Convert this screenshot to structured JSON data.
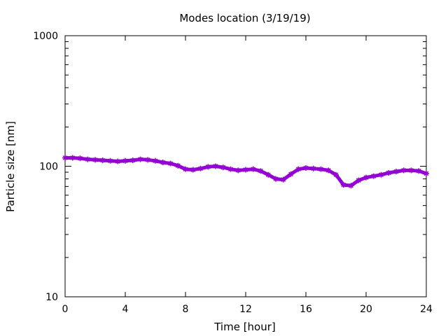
{
  "chart_data": {
    "type": "scatter",
    "title": "Modes location (3/19/19)",
    "xlabel": "Time [hour]",
    "ylabel": "Particle size [nm]",
    "xlim": [
      0,
      24
    ],
    "ylim": [
      10,
      1000
    ],
    "yscale": "log",
    "grid": false,
    "xticks": [
      0,
      4,
      8,
      12,
      16,
      20,
      24
    ],
    "xtick_labels": [
      "0",
      "4",
      "8",
      "12",
      "16",
      "20",
      "24"
    ],
    "yticks": [
      10,
      100,
      1000
    ],
    "ytick_labels": [
      "10",
      "100",
      "1000"
    ],
    "series_color": "#9400d3",
    "marker": "star",
    "series": [
      {
        "x": [
          0,
          0.5,
          1,
          1.5,
          2,
          2.5,
          3,
          3.5,
          4,
          4.5,
          5,
          5.5,
          6,
          6.5,
          7,
          7.5,
          8,
          8.5,
          9,
          9.5,
          10,
          10.5,
          11,
          11.5,
          12,
          12.5,
          13,
          13.5,
          14,
          14.5,
          15,
          15.5,
          16,
          16.5,
          17,
          17.5,
          18,
          18.5,
          19,
          19.5,
          20,
          20.5,
          21,
          21.5,
          22,
          22.5,
          23,
          23.5,
          24
        ],
        "values": [
          116,
          116,
          115,
          113,
          112,
          111,
          110,
          109,
          110,
          111,
          113,
          112,
          110,
          107,
          105,
          101,
          95,
          94,
          96,
          99,
          100,
          98,
          95,
          93,
          94,
          95,
          92,
          86,
          80,
          79,
          87,
          95,
          97,
          96,
          95,
          93,
          86,
          72,
          71,
          78,
          82,
          84,
          86,
          89,
          91,
          93,
          93,
          92,
          88
        ]
      }
    ]
  }
}
